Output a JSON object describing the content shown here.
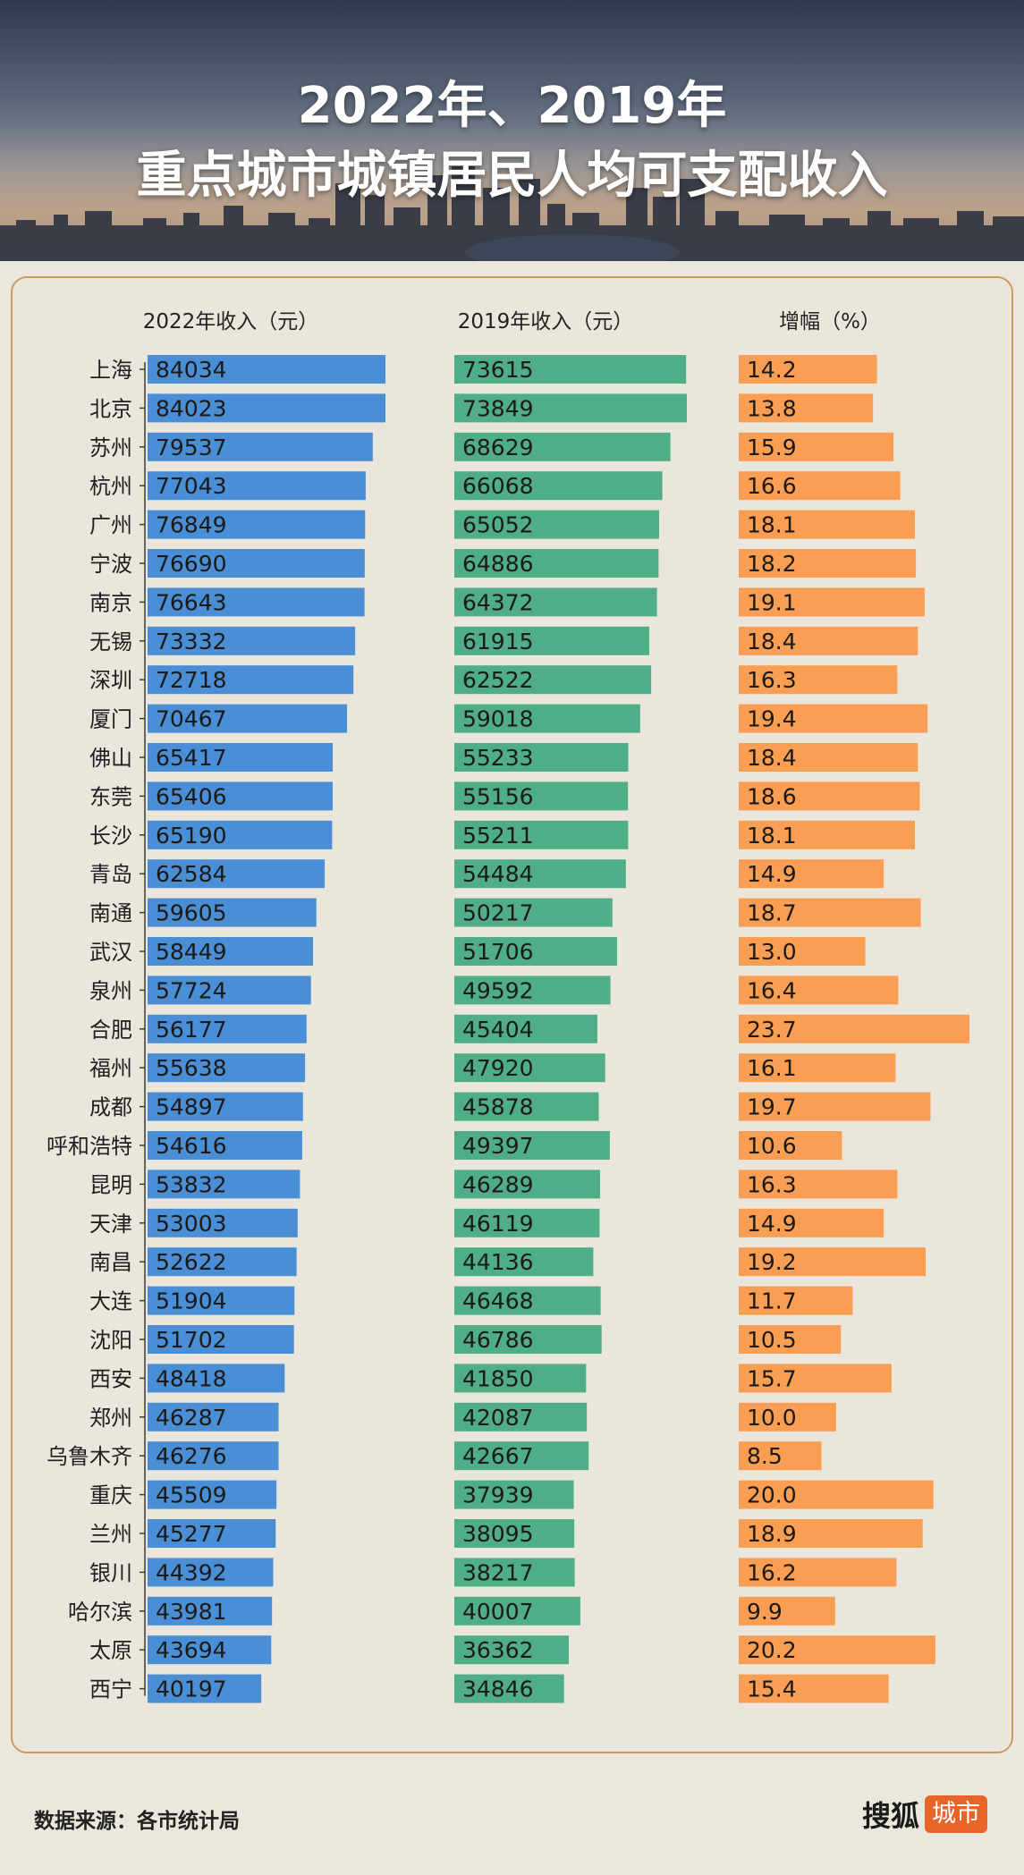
{
  "title_line1": "2022年、2019年",
  "title_line2": "重点城市城镇居民人均可支配收入",
  "source": "数据来源：各市统计局",
  "brand": {
    "name": "搜狐",
    "tag": "城市"
  },
  "colors": {
    "bar2022": "#4a8fd6",
    "bar2019": "#4fae88",
    "growth": "#f99e53",
    "brand_tag": "#e8652a",
    "panel_border": "#c99a64"
  },
  "chart_data": {
    "type": "bar",
    "orientation": "horizontal",
    "categories": [
      "上海",
      "北京",
      "苏州",
      "杭州",
      "广州",
      "宁波",
      "南京",
      "无锡",
      "深圳",
      "厦门",
      "佛山",
      "东莞",
      "长沙",
      "青岛",
      "南通",
      "武汉",
      "泉州",
      "合肥",
      "福州",
      "成都",
      "呼和浩特",
      "昆明",
      "天津",
      "南昌",
      "大连",
      "沈阳",
      "西安",
      "郑州",
      "乌鲁木齐",
      "重庆",
      "兰州",
      "银川",
      "哈尔滨",
      "太原",
      "西宁"
    ],
    "series": [
      {
        "name": "2022年收入（元）",
        "values": [
          84034,
          84023,
          79537,
          77043,
          76849,
          76690,
          76643,
          73332,
          72718,
          70467,
          65417,
          65406,
          65190,
          62584,
          59605,
          58449,
          57724,
          56177,
          55638,
          54897,
          54616,
          53832,
          53003,
          52622,
          51904,
          51702,
          48418,
          46287,
          46276,
          45509,
          45277,
          44392,
          43981,
          43694,
          40197
        ]
      },
      {
        "name": "2019年收入（元）",
        "values": [
          73615,
          73849,
          68629,
          66068,
          65052,
          64886,
          64372,
          61915,
          62522,
          59018,
          55233,
          55156,
          55211,
          54484,
          50217,
          51706,
          49592,
          45404,
          47920,
          45878,
          49397,
          46289,
          46119,
          44136,
          46468,
          46786,
          41850,
          42087,
          42667,
          37939,
          38095,
          38217,
          40007,
          36362,
          34846
        ]
      },
      {
        "name": "增幅（%）",
        "values": [
          "14.2",
          "13.8",
          "15.9",
          "16.6",
          "18.1",
          "18.2",
          "19.1",
          "18.4",
          "16.3",
          "19.4",
          "18.4",
          "18.6",
          "18.1",
          "14.9",
          "18.7",
          "13.0",
          "16.4",
          "23.7",
          "16.1",
          "19.7",
          "10.6",
          "16.3",
          "14.9",
          "19.2",
          "11.7",
          "10.5",
          "15.7",
          "10.0",
          "8.5",
          "20.0",
          "18.9",
          "16.2",
          "9.9",
          "20.2",
          "15.4"
        ]
      }
    ]
  }
}
